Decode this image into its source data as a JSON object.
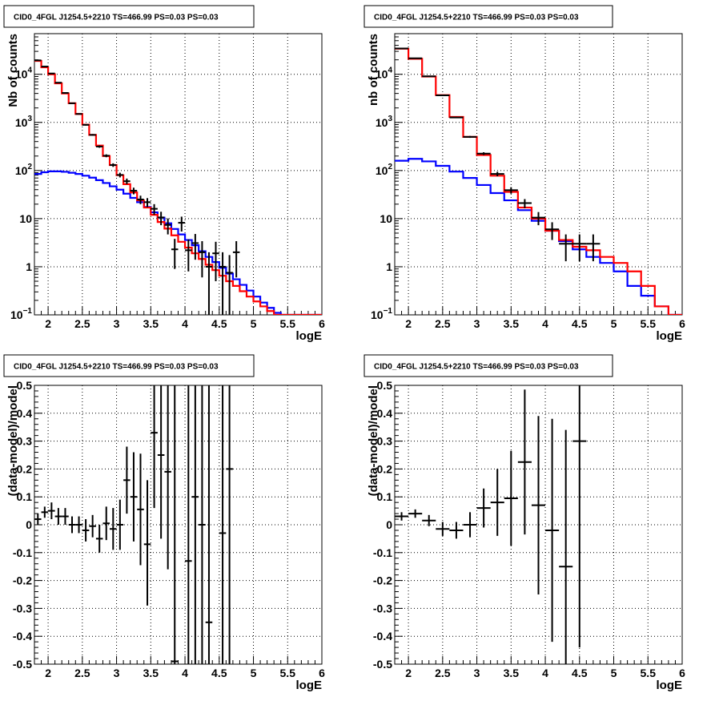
{
  "colors": {
    "data": "#000000",
    "total_model": "#ff0000",
    "background_model": "#0000ff",
    "grid": "#000000"
  },
  "chart_data": [
    {
      "id": "counts-left",
      "type": "line",
      "title": "CID0_4FGL J1254.5+2210 TS=466.99 PS=0.03 PS=0.03",
      "xlabel": "logE",
      "ylabel": "Nb of counts",
      "xlim": [
        1.8,
        6.0
      ],
      "ylim": [
        0.1,
        70000
      ],
      "yscale": "log",
      "grid": true,
      "x_ticks": [
        "2",
        "2.5",
        "3",
        "3.5",
        "4",
        "4.5",
        "5",
        "5.5",
        "6"
      ],
      "y_ticks": [
        {
          "value": 0.1,
          "mantissa": "10",
          "exponent": "−1"
        },
        {
          "value": 1,
          "mantissa": "1",
          "exponent": ""
        },
        {
          "value": 10,
          "mantissa": "10",
          "exponent": ""
        },
        {
          "value": 100,
          "mantissa": "10",
          "exponent": "2"
        },
        {
          "value": 1000,
          "mantissa": "10",
          "exponent": "3"
        },
        {
          "value": 10000,
          "mantissa": "10",
          "exponent": "4"
        }
      ],
      "bin_edges": [
        1.8,
        1.9,
        2.0,
        2.1,
        2.2,
        2.3,
        2.4,
        2.5,
        2.6,
        2.7,
        2.8,
        2.9,
        3.0,
        3.1,
        3.2,
        3.3,
        3.4,
        3.5,
        3.6,
        3.7,
        3.8,
        3.9,
        4.0,
        4.1,
        4.2,
        4.3,
        4.4,
        4.5,
        4.6,
        4.7,
        4.8,
        4.9,
        5.0,
        5.1,
        5.2,
        5.3,
        5.4,
        5.5,
        5.6,
        5.7,
        5.8,
        5.9,
        6.0
      ],
      "series": [
        {
          "name": "total model",
          "color": "#ff0000",
          "values": [
            19000,
            14000,
            10000,
            6500,
            4000,
            2500,
            1500,
            900,
            550,
            330,
            200,
            130,
            80,
            52,
            35,
            24,
            17,
            12,
            8.5,
            6.2,
            4.5,
            3.3,
            2.5,
            1.9,
            1.45,
            1.1,
            0.85,
            0.65,
            0.5,
            0.4,
            0.31,
            0.24,
            0.19,
            0.15,
            0.12,
            0.1,
            0.1,
            0.1,
            0.1,
            0.1,
            0.1,
            0.1
          ]
        },
        {
          "name": "background model",
          "color": "#0000ff",
          "values": [
            85,
            92,
            96,
            96,
            94,
            90,
            85,
            78,
            71,
            63,
            55,
            47,
            40,
            33,
            27,
            22,
            17.5,
            13.5,
            10.5,
            8,
            6.1,
            4.7,
            3.6,
            2.8,
            2.1,
            1.6,
            1.25,
            0.95,
            0.72,
            0.55,
            0.42,
            0.32,
            0.24,
            0.18,
            0.14,
            0.11,
            0.1,
            0.1,
            0.1,
            0.1,
            0.1,
            0.1
          ]
        }
      ],
      "data_points": [
        {
          "x": 1.85,
          "y": 19500,
          "xerr": 0.05,
          "yerr_lo": 140,
          "yerr_hi": 140
        },
        {
          "x": 1.95,
          "y": 14500,
          "xerr": 0.05,
          "yerr_lo": 120,
          "yerr_hi": 120
        },
        {
          "x": 2.05,
          "y": 10400,
          "xerr": 0.05,
          "yerr_lo": 100,
          "yerr_hi": 100
        },
        {
          "x": 2.15,
          "y": 6700,
          "xerr": 0.05,
          "yerr_lo": 82,
          "yerr_hi": 82
        },
        {
          "x": 2.25,
          "y": 4100,
          "xerr": 0.05,
          "yerr_lo": 64,
          "yerr_hi": 64
        },
        {
          "x": 2.35,
          "y": 2500,
          "xerr": 0.05,
          "yerr_lo": 50,
          "yerr_hi": 50
        },
        {
          "x": 2.45,
          "y": 1500,
          "xerr": 0.05,
          "yerr_lo": 39,
          "yerr_hi": 39
        },
        {
          "x": 2.55,
          "y": 890,
          "xerr": 0.05,
          "yerr_lo": 30,
          "yerr_hi": 30
        },
        {
          "x": 2.65,
          "y": 550,
          "xerr": 0.05,
          "yerr_lo": 23,
          "yerr_hi": 23
        },
        {
          "x": 2.75,
          "y": 315,
          "xerr": 0.05,
          "yerr_lo": 18,
          "yerr_hi": 18
        },
        {
          "x": 2.85,
          "y": 203,
          "xerr": 0.05,
          "yerr_lo": 14,
          "yerr_hi": 14
        },
        {
          "x": 2.95,
          "y": 130,
          "xerr": 0.05,
          "yerr_lo": 11,
          "yerr_hi": 11
        },
        {
          "x": 3.05,
          "y": 81,
          "xerr": 0.05,
          "yerr_lo": 9,
          "yerr_hi": 9
        },
        {
          "x": 3.15,
          "y": 60,
          "xerr": 0.05,
          "yerr_lo": 8,
          "yerr_hi": 8
        },
        {
          "x": 3.25,
          "y": 38,
          "xerr": 0.05,
          "yerr_lo": 6,
          "yerr_hi": 6
        },
        {
          "x": 3.35,
          "y": 25,
          "xerr": 0.05,
          "yerr_lo": 5,
          "yerr_hi": 5
        },
        {
          "x": 3.45,
          "y": 22,
          "xerr": 0.05,
          "yerr_lo": 4.7,
          "yerr_hi": 4.7
        },
        {
          "x": 3.55,
          "y": 16,
          "xerr": 0.05,
          "yerr_lo": 4,
          "yerr_hi": 4
        },
        {
          "x": 3.65,
          "y": 10.6,
          "xerr": 0.05,
          "yerr_lo": 3.3,
          "yerr_hi": 3.3
        },
        {
          "x": 3.75,
          "y": 7.4,
          "xerr": 0.05,
          "yerr_lo": 2.7,
          "yerr_hi": 2.7
        },
        {
          "x": 3.85,
          "y": 2.3,
          "xerr": 0.05,
          "yerr_lo": 1.4,
          "yerr_hi": 1.5
        },
        {
          "x": 3.95,
          "y": 8.2,
          "xerr": 0.05,
          "yerr_lo": 2.8,
          "yerr_hi": 2.8
        },
        {
          "x": 4.05,
          "y": 2.2,
          "xerr": 0.05,
          "yerr_lo": 1.4,
          "yerr_hi": 1.5
        },
        {
          "x": 4.15,
          "y": 3.1,
          "xerr": 0.05,
          "yerr_lo": 1.7,
          "yerr_hi": 1.7
        },
        {
          "x": 4.25,
          "y": 2.0,
          "xerr": 0.05,
          "yerr_lo": 1.4,
          "yerr_hi": 1.4
        },
        {
          "x": 4.35,
          "y": 1.0,
          "xerr": 0.05,
          "yerr_lo": 0.9,
          "yerr_hi": 1.0
        },
        {
          "x": 4.45,
          "y": 1.9,
          "xerr": 0.05,
          "yerr_lo": 1.4,
          "yerr_hi": 1.4
        },
        {
          "x": 4.55,
          "y": 1.0,
          "xerr": 0.05,
          "yerr_lo": 0.9,
          "yerr_hi": 1.0
        },
        {
          "x": 4.65,
          "y": 0.75,
          "xerr": 0.05,
          "yerr_lo": 0.65,
          "yerr_hi": 1.0
        },
        {
          "x": 4.75,
          "y": 2.0,
          "xerr": 0.05,
          "yerr_lo": 1.4,
          "yerr_hi": 1.4
        }
      ]
    },
    {
      "id": "counts-right",
      "type": "line",
      "title": "CID0_4FGL J1254.5+2210 TS=466.99 PS=0.03 PS=0.03",
      "xlabel": "logE",
      "ylabel": "nb of counts",
      "xlim": [
        1.8,
        6.0
      ],
      "ylim": [
        0.1,
        70000
      ],
      "yscale": "log",
      "grid": true,
      "x_ticks": [
        "2",
        "2.5",
        "3",
        "3.5",
        "4",
        "4.5",
        "5",
        "5.5",
        "6"
      ],
      "y_ticks": [
        {
          "value": 0.1,
          "mantissa": "10",
          "exponent": "−1"
        },
        {
          "value": 1,
          "mantissa": "1",
          "exponent": ""
        },
        {
          "value": 10,
          "mantissa": "10",
          "exponent": ""
        },
        {
          "value": 100,
          "mantissa": "10",
          "exponent": "2"
        },
        {
          "value": 1000,
          "mantissa": "10",
          "exponent": "3"
        },
        {
          "value": 10000,
          "mantissa": "10",
          "exponent": "4"
        }
      ],
      "bin_edges": [
        1.8,
        2.0,
        2.2,
        2.4,
        2.6,
        2.8,
        3.0,
        3.2,
        3.4,
        3.6,
        3.8,
        4.0,
        4.2,
        4.4,
        4.6,
        4.8,
        5.0,
        5.2,
        5.4,
        5.6,
        5.8,
        6.0
      ],
      "series": [
        {
          "name": "total model",
          "color": "#ff0000",
          "values": [
            34000,
            21000,
            9000,
            3700,
            1300,
            500,
            210,
            78,
            36,
            17,
            10,
            5.6,
            3.6,
            2.6,
            2.2,
            1.6,
            1.2,
            0.8,
            0.4,
            0.15,
            0.1
          ]
        },
        {
          "name": "background model",
          "color": "#0000ff",
          "values": [
            160,
            175,
            155,
            125,
            95,
            70,
            50,
            34,
            24,
            15,
            9,
            5.6,
            3.4,
            2.3,
            1.6,
            1.2,
            0.8,
            0.4,
            0.25,
            0.15,
            0.1
          ]
        }
      ],
      "data_points": [
        {
          "x": 1.9,
          "y": 34500,
          "xerr": 0.1,
          "yerr_lo": 190,
          "yerr_hi": 190
        },
        {
          "x": 2.1,
          "y": 21500,
          "xerr": 0.1,
          "yerr_lo": 150,
          "yerr_hi": 150
        },
        {
          "x": 2.3,
          "y": 9100,
          "xerr": 0.1,
          "yerr_lo": 95,
          "yerr_hi": 95
        },
        {
          "x": 2.5,
          "y": 3650,
          "xerr": 0.1,
          "yerr_lo": 60,
          "yerr_hi": 60
        },
        {
          "x": 2.7,
          "y": 1270,
          "xerr": 0.1,
          "yerr_lo": 36,
          "yerr_hi": 36
        },
        {
          "x": 2.9,
          "y": 500,
          "xerr": 0.1,
          "yerr_lo": 22,
          "yerr_hi": 22
        },
        {
          "x": 3.1,
          "y": 225,
          "xerr": 0.1,
          "yerr_lo": 15,
          "yerr_hi": 15
        },
        {
          "x": 3.3,
          "y": 85,
          "xerr": 0.1,
          "yerr_lo": 9,
          "yerr_hi": 9
        },
        {
          "x": 3.5,
          "y": 39,
          "xerr": 0.1,
          "yerr_lo": 6,
          "yerr_hi": 6
        },
        {
          "x": 3.7,
          "y": 21,
          "xerr": 0.1,
          "yerr_lo": 4.5,
          "yerr_hi": 4.5
        },
        {
          "x": 3.9,
          "y": 10.5,
          "xerr": 0.1,
          "yerr_lo": 3.2,
          "yerr_hi": 3.2
        },
        {
          "x": 4.1,
          "y": 6,
          "xerr": 0.1,
          "yerr_lo": 2.4,
          "yerr_hi": 2.4
        },
        {
          "x": 4.3,
          "y": 3,
          "xerr": 0.1,
          "yerr_lo": 1.7,
          "yerr_hi": 1.7
        },
        {
          "x": 4.5,
          "y": 3,
          "xerr": 0.1,
          "yerr_lo": 1.7,
          "yerr_hi": 1.7
        },
        {
          "x": 4.7,
          "y": 3,
          "xerr": 0.1,
          "yerr_lo": 1.7,
          "yerr_hi": 1.7
        }
      ]
    },
    {
      "id": "residual-left",
      "type": "scatter",
      "title": "CID0_4FGL J1254.5+2210 TS=466.99 PS=0.03 PS=0.03",
      "xlabel": "logE",
      "ylabel": "(data-model)/model",
      "xlim": [
        1.8,
        6.0
      ],
      "ylim": [
        -0.5,
        0.5
      ],
      "yscale": "linear",
      "grid": true,
      "x_ticks": [
        "2",
        "2.5",
        "3",
        "3.5",
        "4",
        "4.5",
        "5",
        "5.5",
        "6"
      ],
      "y_ticks": [
        "-0.5",
        "-0.4",
        "-0.3",
        "-0.2",
        "-0.1",
        "0",
        "0.1",
        "0.2",
        "0.3",
        "0.4",
        "0.5"
      ],
      "data_points": [
        {
          "x": 1.85,
          "y": 0.02,
          "xerr": 0.05,
          "yerr_lo": 0.02,
          "yerr_hi": 0.02
        },
        {
          "x": 1.95,
          "y": 0.045,
          "xerr": 0.05,
          "yerr_lo": 0.02,
          "yerr_hi": 0.02
        },
        {
          "x": 2.05,
          "y": 0.05,
          "xerr": 0.05,
          "yerr_lo": 0.03,
          "yerr_hi": 0.03
        },
        {
          "x": 2.15,
          "y": 0.03,
          "xerr": 0.05,
          "yerr_lo": 0.03,
          "yerr_hi": 0.03
        },
        {
          "x": 2.25,
          "y": 0.03,
          "xerr": 0.05,
          "yerr_lo": 0.03,
          "yerr_hi": 0.03
        },
        {
          "x": 2.35,
          "y": 0.0,
          "xerr": 0.05,
          "yerr_lo": 0.03,
          "yerr_hi": 0.03
        },
        {
          "x": 2.45,
          "y": 0.0,
          "xerr": 0.05,
          "yerr_lo": 0.03,
          "yerr_hi": 0.03
        },
        {
          "x": 2.55,
          "y": -0.02,
          "xerr": 0.05,
          "yerr_lo": 0.04,
          "yerr_hi": 0.04
        },
        {
          "x": 2.65,
          "y": -0.005,
          "xerr": 0.05,
          "yerr_lo": 0.04,
          "yerr_hi": 0.04
        },
        {
          "x": 2.75,
          "y": -0.05,
          "xerr": 0.05,
          "yerr_lo": 0.05,
          "yerr_hi": 0.05
        },
        {
          "x": 2.85,
          "y": 0.005,
          "xerr": 0.05,
          "yerr_lo": 0.06,
          "yerr_hi": 0.06
        },
        {
          "x": 2.95,
          "y": -0.015,
          "xerr": 0.05,
          "yerr_lo": 0.075,
          "yerr_hi": 0.075
        },
        {
          "x": 3.05,
          "y": 0.0,
          "xerr": 0.05,
          "yerr_lo": 0.09,
          "yerr_hi": 0.09
        },
        {
          "x": 3.15,
          "y": 0.16,
          "xerr": 0.05,
          "yerr_lo": 0.12,
          "yerr_hi": 0.12
        },
        {
          "x": 3.25,
          "y": 0.1,
          "xerr": 0.05,
          "yerr_lo": 0.16,
          "yerr_hi": 0.16
        },
        {
          "x": 3.35,
          "y": 0.055,
          "xerr": 0.05,
          "yerr_lo": 0.2,
          "yerr_hi": 0.2
        },
        {
          "x": 3.45,
          "y": -0.07,
          "xerr": 0.05,
          "yerr_lo": 0.22,
          "yerr_hi": 0.23
        },
        {
          "x": 3.55,
          "y": 0.33,
          "xerr": 0.05,
          "yerr_lo": 0.27,
          "yerr_hi": 0.27
        },
        {
          "x": 3.65,
          "y": 0.25,
          "xerr": 0.05,
          "yerr_lo": 0.3,
          "yerr_hi": 0.35
        },
        {
          "x": 3.75,
          "y": 0.19,
          "xerr": 0.05,
          "yerr_lo": 0.35,
          "yerr_hi": 0.35
        },
        {
          "x": 3.85,
          "y": -0.49,
          "xerr": 0.05,
          "yerr_lo": 0.01,
          "yerr_hi": 1.0
        },
        {
          "x": 4.05,
          "y": -0.13,
          "xerr": 0.05,
          "yerr_lo": 0.37,
          "yerr_hi": 0.63
        },
        {
          "x": 4.15,
          "y": 0.1,
          "xerr": 0.05,
          "yerr_lo": 0.6,
          "yerr_hi": 0.4
        },
        {
          "x": 4.25,
          "y": 0.0,
          "xerr": 0.05,
          "yerr_lo": 0.5,
          "yerr_hi": 0.5
        },
        {
          "x": 4.35,
          "y": -0.35,
          "xerr": 0.05,
          "yerr_lo": 0.15,
          "yerr_hi": 0.85
        },
        {
          "x": 4.55,
          "y": -0.03,
          "xerr": 0.05,
          "yerr_lo": 0.47,
          "yerr_hi": 0.53
        },
        {
          "x": 4.65,
          "y": 0.2,
          "xerr": 0.05,
          "yerr_lo": 0.7,
          "yerr_hi": 0.3
        }
      ]
    },
    {
      "id": "residual-right",
      "type": "scatter",
      "title": "CID0_4FGL J1254.5+2210 TS=466.99 PS=0.03 PS=0.03",
      "xlabel": "logE",
      "ylabel": "(data-model)/model",
      "xlim": [
        1.8,
        6.0
      ],
      "ylim": [
        -0.5,
        0.5
      ],
      "yscale": "linear",
      "grid": true,
      "x_ticks": [
        "2",
        "2.5",
        "3",
        "3.5",
        "4",
        "4.5",
        "5",
        "5.5",
        "6"
      ],
      "y_ticks": [
        "-0.5",
        "-0.4",
        "-0.3",
        "-0.2",
        "-0.1",
        "0",
        "0.1",
        "0.2",
        "0.3",
        "0.4",
        "0.5"
      ],
      "data_points": [
        {
          "x": 1.9,
          "y": 0.03,
          "xerr": 0.1,
          "yerr_lo": 0.015,
          "yerr_hi": 0.015
        },
        {
          "x": 2.1,
          "y": 0.04,
          "xerr": 0.1,
          "yerr_lo": 0.015,
          "yerr_hi": 0.015
        },
        {
          "x": 2.3,
          "y": 0.015,
          "xerr": 0.1,
          "yerr_lo": 0.02,
          "yerr_hi": 0.02
        },
        {
          "x": 2.5,
          "y": -0.015,
          "xerr": 0.1,
          "yerr_lo": 0.025,
          "yerr_hi": 0.025
        },
        {
          "x": 2.7,
          "y": -0.02,
          "xerr": 0.1,
          "yerr_lo": 0.03,
          "yerr_hi": 0.03
        },
        {
          "x": 2.9,
          "y": 0.0,
          "xerr": 0.1,
          "yerr_lo": 0.045,
          "yerr_hi": 0.045
        },
        {
          "x": 3.1,
          "y": 0.06,
          "xerr": 0.1,
          "yerr_lo": 0.07,
          "yerr_hi": 0.07
        },
        {
          "x": 3.3,
          "y": 0.08,
          "xerr": 0.1,
          "yerr_lo": 0.12,
          "yerr_hi": 0.12
        },
        {
          "x": 3.5,
          "y": 0.095,
          "xerr": 0.1,
          "yerr_lo": 0.17,
          "yerr_hi": 0.17
        },
        {
          "x": 3.7,
          "y": 0.225,
          "xerr": 0.1,
          "yerr_lo": 0.26,
          "yerr_hi": 0.26
        },
        {
          "x": 3.9,
          "y": 0.07,
          "xerr": 0.1,
          "yerr_lo": 0.32,
          "yerr_hi": 0.32
        },
        {
          "x": 4.1,
          "y": -0.02,
          "xerr": 0.1,
          "yerr_lo": 0.4,
          "yerr_hi": 0.4
        },
        {
          "x": 4.3,
          "y": -0.15,
          "xerr": 0.1,
          "yerr_lo": 0.35,
          "yerr_hi": 0.49
        },
        {
          "x": 4.5,
          "y": 0.3,
          "xerr": 0.1,
          "yerr_lo": 0.74,
          "yerr_hi": 0.2
        }
      ]
    }
  ]
}
